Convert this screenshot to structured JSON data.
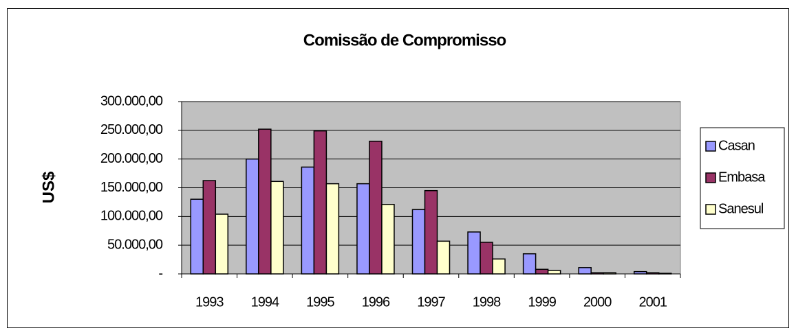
{
  "chart_data": {
    "type": "bar",
    "title": "Comissão de Compromisso",
    "y_label": "US$",
    "categories": [
      "1993",
      "1994",
      "1995",
      "1996",
      "1997",
      "1998",
      "1999",
      "2000",
      "2001"
    ],
    "series": [
      {
        "name": "Casan",
        "color": "#9999ff",
        "values": [
          130000,
          200000,
          186000,
          157000,
          112000,
          73000,
          35000,
          11000,
          4000
        ]
      },
      {
        "name": "Embasa",
        "color": "#993366",
        "values": [
          162500,
          252000,
          249000,
          231000,
          145000,
          55000,
          8000,
          2000,
          2000
        ]
      },
      {
        "name": "Sanesul",
        "color": "#ffffcc",
        "values": [
          104000,
          161000,
          157000,
          121000,
          57000,
          26000,
          6000,
          2000,
          1000
        ]
      }
    ],
    "ylim": [
      0,
      300000
    ],
    "yticks": [
      {
        "value": 0,
        "label": "-"
      },
      {
        "value": 50000,
        "label": "50.000,00"
      },
      {
        "value": 100000,
        "label": "100.000,00"
      },
      {
        "value": 150000,
        "label": "150.000,00"
      },
      {
        "value": 200000,
        "label": "200.000,00"
      },
      {
        "value": 250000,
        "label": "250.000,00"
      },
      {
        "value": 300000,
        "label": "300.000,00"
      }
    ],
    "grid": true,
    "plot_background": "#c0c0c0",
    "legend": "right"
  }
}
